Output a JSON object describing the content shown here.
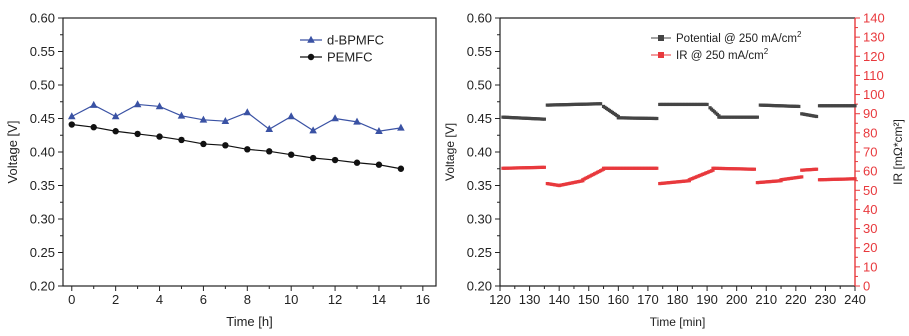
{
  "chart_data": [
    {
      "type": "line",
      "xlabel": "Time [h]",
      "ylabel": "Voltage [V]",
      "xlim": [
        -0.4,
        16.6
      ],
      "ylim": [
        0.2,
        0.6
      ],
      "xticks": [
        "0",
        "2",
        "4",
        "6",
        "8",
        "10",
        "12",
        "14",
        "16"
      ],
      "yticks": [
        "0.20",
        "0.25",
        "0.30",
        "0.35",
        "0.40",
        "0.45",
        "0.50",
        "0.55",
        "0.60"
      ],
      "legend": "top-right",
      "grid": false,
      "series": [
        {
          "name": "d-BPMFC",
          "color": "#3a52a4",
          "marker": "triangle",
          "x": [
            0,
            1,
            2,
            3,
            4,
            5,
            6,
            7,
            8,
            9,
            10,
            11,
            12,
            13,
            14,
            15
          ],
          "values": [
            0.453,
            0.47,
            0.453,
            0.471,
            0.468,
            0.454,
            0.448,
            0.446,
            0.459,
            0.434,
            0.453,
            0.432,
            0.45,
            0.445,
            0.431,
            0.436
          ]
        },
        {
          "name": "PEMFC",
          "color": "#111111",
          "marker": "circle",
          "x": [
            0,
            1,
            2,
            3,
            4,
            5,
            6,
            7,
            8,
            9,
            10,
            11,
            12,
            13,
            14,
            15
          ],
          "values": [
            0.441,
            0.437,
            0.431,
            0.427,
            0.423,
            0.418,
            0.412,
            0.41,
            0.404,
            0.401,
            0.396,
            0.391,
            0.388,
            0.384,
            0.381,
            0.375
          ]
        }
      ]
    },
    {
      "type": "scatter",
      "xlabel": "Time [min]",
      "ylabel": "Voltage [V]",
      "ylabel_right": "IR [mΩ*cm²]",
      "xlim": [
        120,
        240
      ],
      "ylim": [
        0.2,
        0.6
      ],
      "ylim_right": [
        0,
        140
      ],
      "xticks": [
        "120",
        "130",
        "140",
        "150",
        "160",
        "170",
        "180",
        "190",
        "200",
        "210",
        "220",
        "230",
        "240"
      ],
      "yticks": [
        "0.20",
        "0.25",
        "0.30",
        "0.35",
        "0.40",
        "0.45",
        "0.50",
        "0.55",
        "0.60"
      ],
      "yticks_right": [
        "0",
        "10",
        "20",
        "30",
        "40",
        "50",
        "60",
        "70",
        "80",
        "90",
        "100",
        "110",
        "120",
        "130",
        "140"
      ],
      "right_axis_color": "#e8393d",
      "legend": "top-center",
      "grid": false,
      "series": [
        {
          "name_prefix": "Potential @ 250 mA/cm",
          "name_sup": "2",
          "color": "#444444",
          "axis": "left",
          "segments": [
            {
              "x": [
                121,
                135
              ],
              "y": [
                0.452,
                0.449
              ]
            },
            {
              "x": [
                136,
                154
              ],
              "y": [
                0.47,
                0.472
              ]
            },
            {
              "x": [
                155,
                160
              ],
              "y": [
                0.468,
                0.453
              ]
            },
            {
              "x": [
                160,
                173
              ],
              "y": [
                0.451,
                0.45
              ]
            },
            {
              "x": [
                174,
                190
              ],
              "y": [
                0.471,
                0.471
              ]
            },
            {
              "x": [
                191,
                194
              ],
              "y": [
                0.466,
                0.454
              ]
            },
            {
              "x": [
                194,
                207
              ],
              "y": [
                0.452,
                0.452
              ]
            },
            {
              "x": [
                208,
                221
              ],
              "y": [
                0.47,
                0.468
              ]
            },
            {
              "x": [
                222,
                227
              ],
              "y": [
                0.457,
                0.453
              ]
            },
            {
              "x": [
                228,
                240
              ],
              "y": [
                0.469,
                0.469
              ]
            }
          ]
        },
        {
          "name_prefix": "IR @ 250 mA/cm",
          "name_sup": "2",
          "color": "#e8393d",
          "axis": "right",
          "segments": [
            {
              "x": [
                121,
                135
              ],
              "y": [
                61.5,
                62.0
              ]
            },
            {
              "x": [
                136,
                140
              ],
              "y": [
                53.5,
                52.5
              ]
            },
            {
              "x": [
                140,
                148
              ],
              "y": [
                52.5,
                55.0
              ]
            },
            {
              "x": [
                148,
                155
              ],
              "y": [
                55.5,
                61.0
              ]
            },
            {
              "x": [
                155,
                173
              ],
              "y": [
                61.5,
                61.5
              ]
            },
            {
              "x": [
                174,
                184
              ],
              "y": [
                53.5,
                55.0
              ]
            },
            {
              "x": [
                184,
                192
              ],
              "y": [
                55.5,
                60.5
              ]
            },
            {
              "x": [
                192,
                206
              ],
              "y": [
                61.5,
                61.0
              ]
            },
            {
              "x": [
                207,
                215
              ],
              "y": [
                54.0,
                55.0
              ]
            },
            {
              "x": [
                215,
                222
              ],
              "y": [
                55.5,
                57.0
              ]
            },
            {
              "x": [
                222,
                227
              ],
              "y": [
                60.5,
                61.0
              ]
            },
            {
              "x": [
                228,
                240
              ],
              "y": [
                55.5,
                56.0
              ]
            }
          ]
        }
      ]
    }
  ]
}
